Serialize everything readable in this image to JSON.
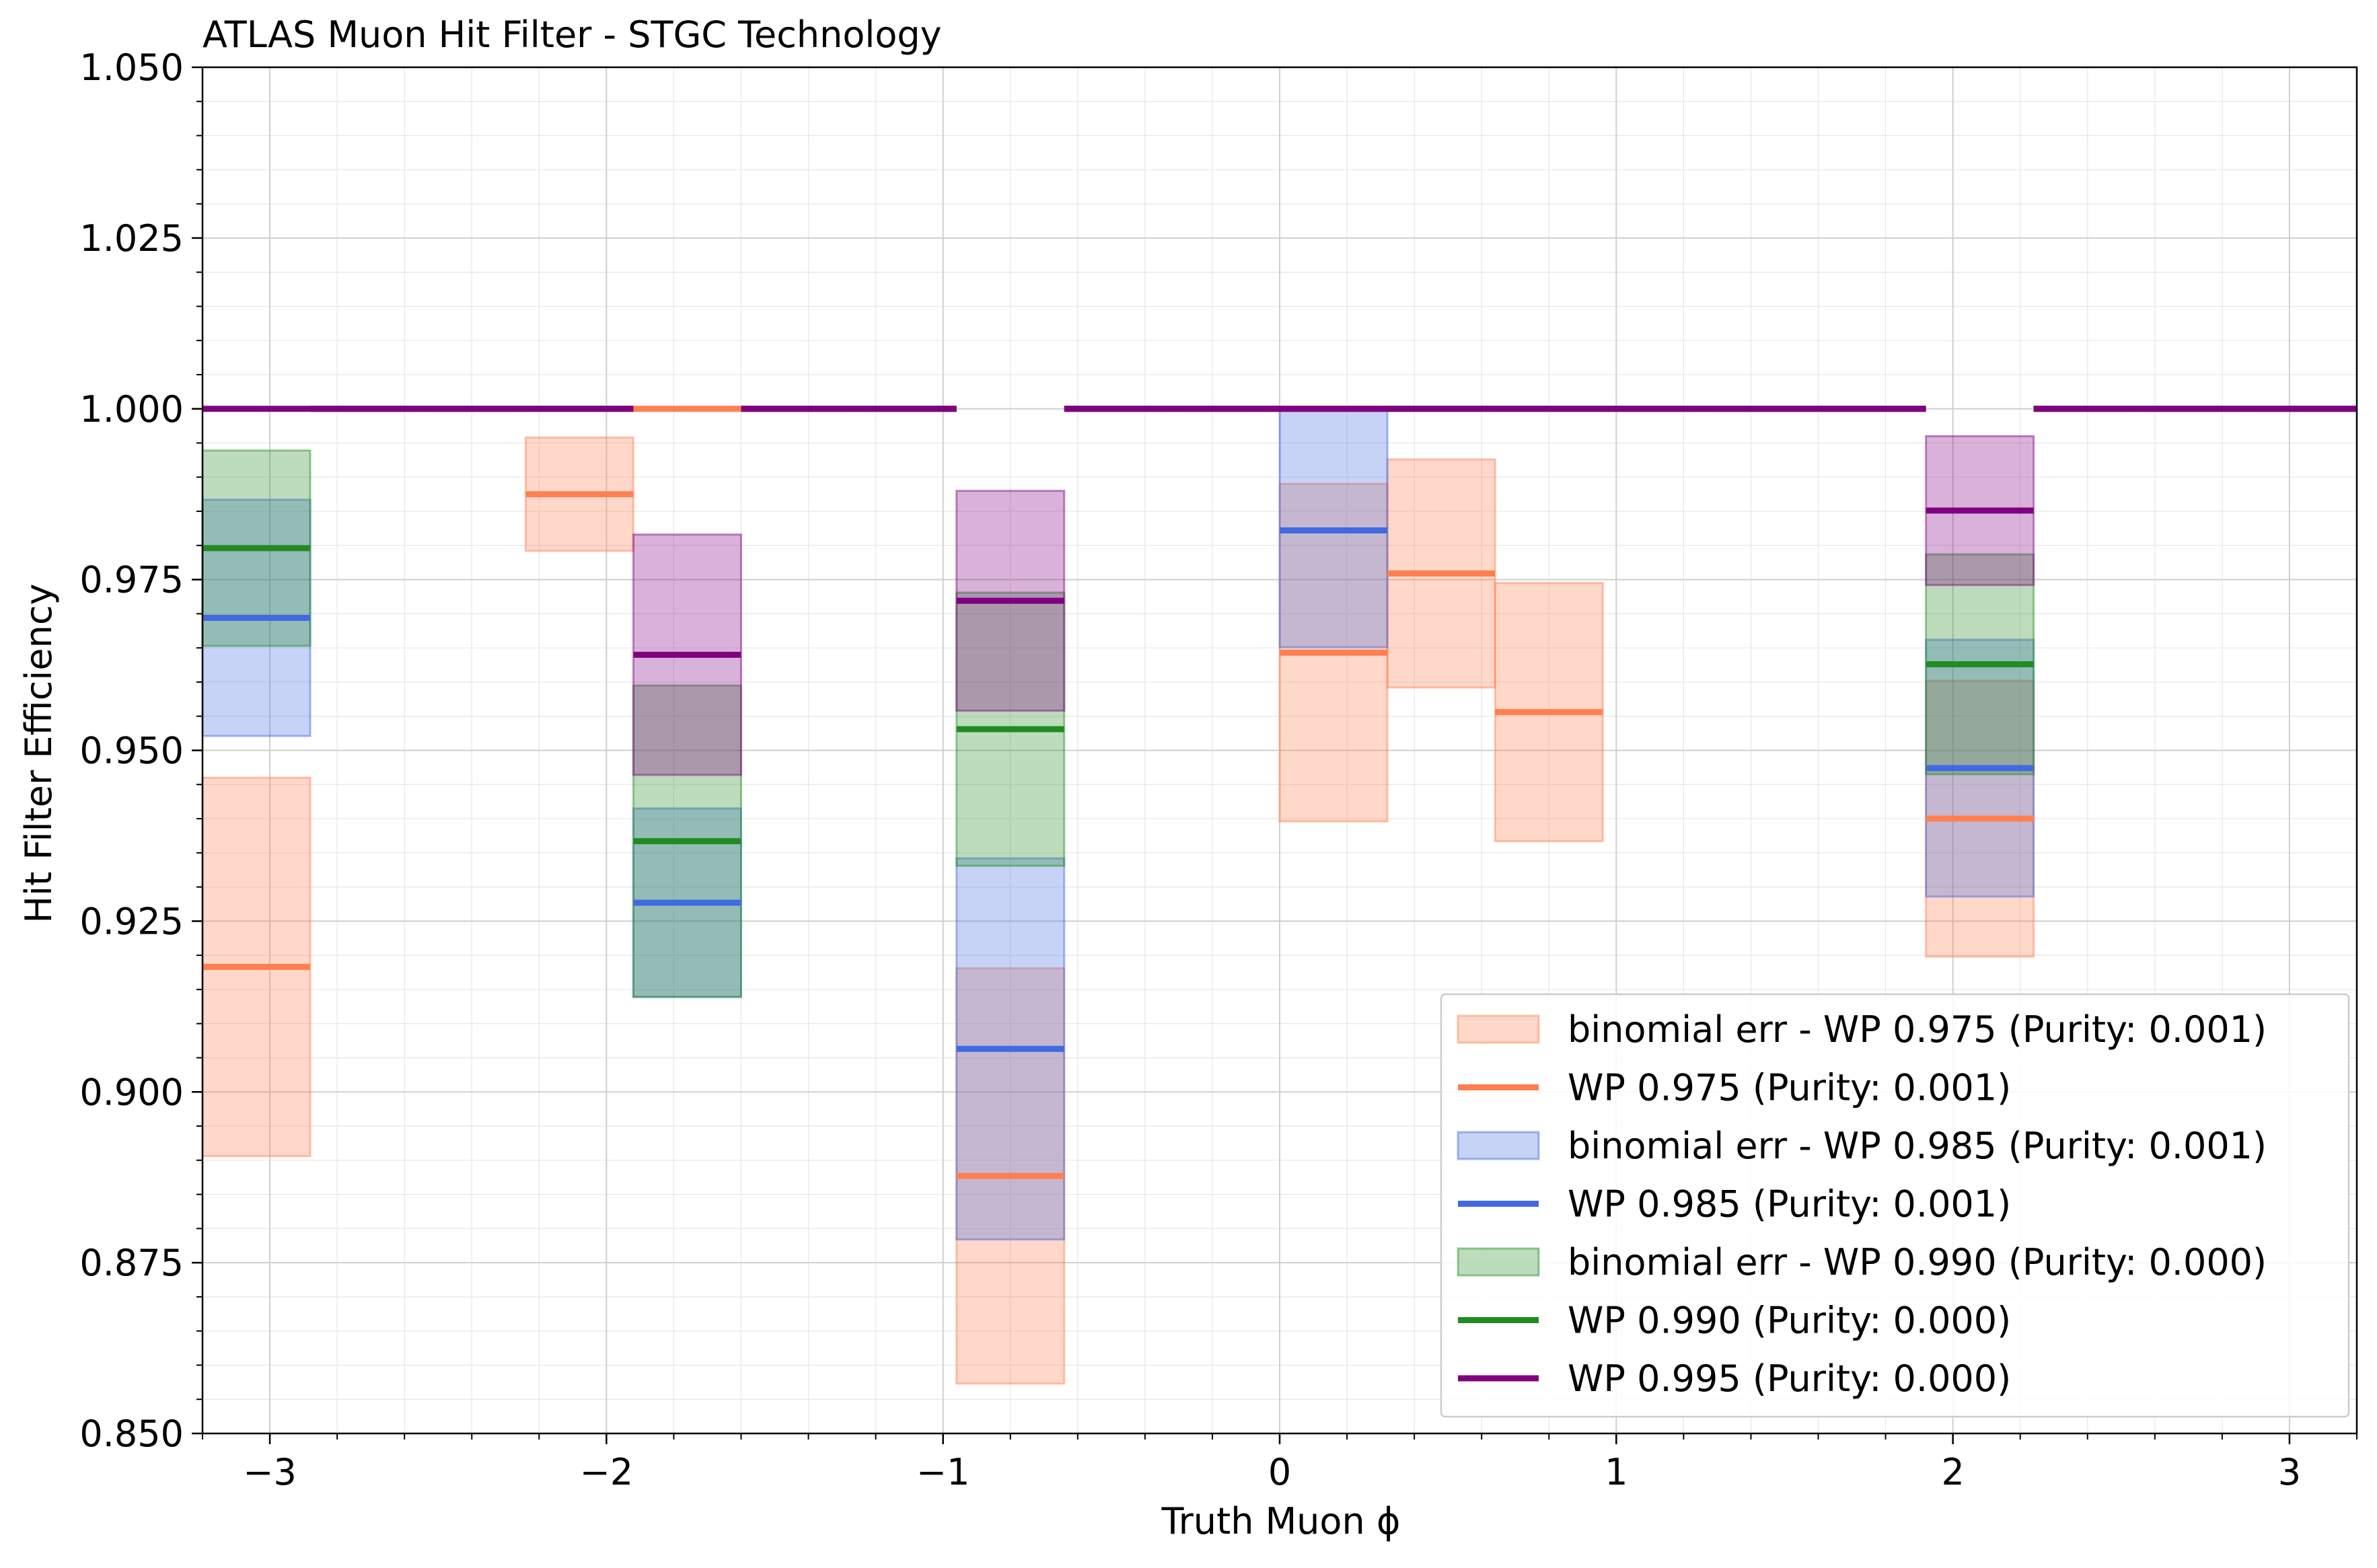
{
  "chart_data": {
    "type": "line",
    "title": "ATLAS Muon Hit Filter - STGC Technology",
    "xlabel": "Truth Muon ϕ",
    "ylabel": "Hit Filter Efficiency",
    "xlim": [
      -3.2,
      3.2
    ],
    "ylim": [
      0.85,
      1.05
    ],
    "xticks": [
      -3,
      -2,
      -1,
      0,
      1,
      2,
      3
    ],
    "xtick_labels": [
      "−3",
      "−2",
      "−1",
      "0",
      "1",
      "2",
      "3"
    ],
    "yticks": [
      0.85,
      0.875,
      0.9,
      0.925,
      0.95,
      0.975,
      1.0,
      1.025,
      1.05
    ],
    "ytick_labels": [
      "0.850",
      "0.875",
      "0.900",
      "0.925",
      "0.950",
      "0.975",
      "1.000",
      "1.025",
      "1.050"
    ],
    "grid": true,
    "legend_position": "lower-right",
    "bin_edges": [
      -3.2,
      -2.88,
      -2.56,
      -2.24,
      -1.92,
      -1.6,
      -1.28,
      -0.96,
      -0.64,
      -0.32,
      0.0,
      0.32,
      0.64,
      0.96,
      1.28,
      1.6,
      1.92,
      2.24,
      2.56,
      2.88,
      3.2
    ],
    "series": [
      {
        "name": "WP 0.975 (Purity: 0.001)",
        "band_label": "binomial err - WP 0.975 (Purity: 0.001)",
        "color": "#ff7f50",
        "values": [
          0.9183,
          1.0,
          1.0,
          0.9875,
          1.0,
          1.0,
          1.0,
          0.8877,
          1.0,
          1.0,
          0.9643,
          0.9759,
          0.9556,
          1.0,
          1.0,
          1.0,
          0.94,
          1.0,
          1.0,
          1.0
        ],
        "err_low": [
          0.8906,
          null,
          null,
          0.9792,
          null,
          null,
          null,
          0.8573,
          null,
          null,
          0.9396,
          0.9592,
          0.9367,
          null,
          null,
          null,
          0.9198,
          null,
          null,
          null
        ],
        "err_high": [
          0.946,
          null,
          null,
          0.9958,
          null,
          null,
          null,
          0.9181,
          null,
          null,
          0.989,
          0.9926,
          0.9745,
          null,
          null,
          null,
          0.9602,
          null,
          null,
          null
        ]
      },
      {
        "name": "WP 0.985 (Purity: 0.001)",
        "band_label": "binomial err - WP 0.985 (Purity: 0.001)",
        "color": "#4169e1",
        "values": [
          0.9694,
          1.0,
          1.0,
          1.0,
          0.9277,
          1.0,
          1.0,
          0.9063,
          1.0,
          1.0,
          0.9822,
          1.0,
          1.0,
          1.0,
          1.0,
          1.0,
          0.9474,
          1.0,
          1.0,
          1.0
        ],
        "err_low": [
          0.9521,
          null,
          null,
          null,
          0.9139,
          null,
          null,
          0.8784,
          null,
          null,
          0.9651,
          null,
          null,
          null,
          null,
          null,
          0.9286,
          null,
          null,
          null
        ],
        "err_high": [
          0.9867,
          null,
          null,
          null,
          0.9415,
          null,
          null,
          0.9342,
          null,
          null,
          1.0,
          null,
          null,
          null,
          null,
          null,
          0.9662,
          null,
          null,
          null
        ]
      },
      {
        "name": "WP 0.990 (Purity: 0.000)",
        "band_label": "binomial err - WP 0.990 (Purity: 0.000)",
        "color": "#228b22",
        "values": [
          0.9796,
          1.0,
          1.0,
          1.0,
          0.9367,
          1.0,
          1.0,
          0.9531,
          1.0,
          1.0,
          1.0,
          1.0,
          1.0,
          1.0,
          1.0,
          1.0,
          0.9626,
          1.0,
          1.0,
          1.0
        ],
        "err_low": [
          0.9653,
          null,
          null,
          null,
          0.9139,
          null,
          null,
          0.9331,
          null,
          null,
          null,
          null,
          null,
          null,
          null,
          null,
          0.9465,
          null,
          null,
          null
        ],
        "err_high": [
          0.9939,
          null,
          null,
          null,
          0.9595,
          null,
          null,
          0.9731,
          null,
          null,
          null,
          null,
          null,
          null,
          null,
          null,
          0.9787,
          null,
          null,
          null
        ]
      },
      {
        "name": "WP 0.995 (Purity: 0.000)",
        "band_label": "",
        "color": "#800080",
        "values": [
          1.0,
          1.0,
          1.0,
          1.0,
          0.964,
          1.0,
          1.0,
          0.9719,
          1.0,
          1.0,
          1.0,
          1.0,
          1.0,
          1.0,
          1.0,
          1.0,
          0.9851,
          1.0,
          1.0,
          1.0
        ],
        "err_low": [
          null,
          null,
          null,
          null,
          0.9464,
          null,
          null,
          0.9558,
          null,
          null,
          null,
          null,
          null,
          null,
          null,
          null,
          0.9742,
          null,
          null,
          null
        ],
        "err_high": [
          null,
          null,
          null,
          null,
          0.9816,
          null,
          null,
          0.988,
          null,
          null,
          null,
          null,
          null,
          null,
          null,
          null,
          0.996,
          null,
          null,
          null
        ]
      }
    ]
  }
}
